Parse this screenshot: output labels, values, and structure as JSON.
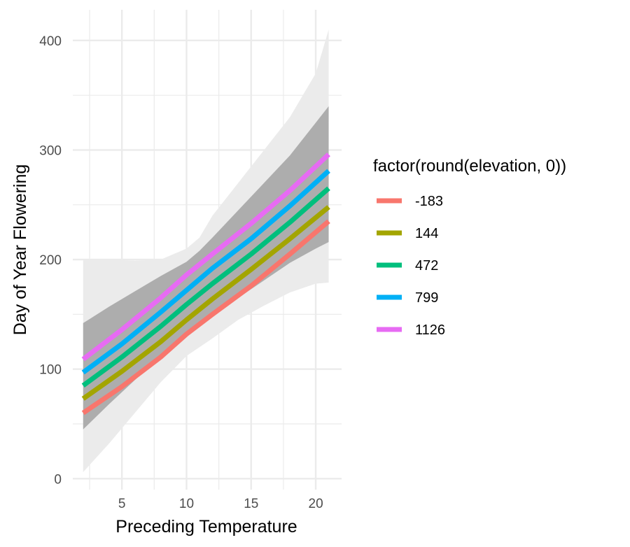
{
  "chart_data": {
    "type": "line",
    "title": "",
    "xlabel": "Preceding Temperature",
    "ylabel": "Day of Year Flowering",
    "xlim": [
      1.2,
      22
    ],
    "ylim": [
      -10,
      428
    ],
    "x_ticks": [
      5,
      10,
      15,
      20
    ],
    "y_ticks": [
      0,
      100,
      200,
      300,
      400
    ],
    "x_tick_labels": [
      "5",
      "10",
      "15",
      "20"
    ],
    "y_tick_labels": [
      "0",
      "100",
      "200",
      "300",
      "400"
    ],
    "grid": true,
    "legend_position": "right",
    "legend_title": "factor(round(elevation, 0))",
    "x": [
      2,
      5,
      8,
      10,
      12,
      15,
      18,
      21
    ],
    "series": [
      {
        "name": "-183",
        "color": "#F8766D",
        "values": [
          60,
          84,
          111,
          132,
          150,
          176,
          205,
          235
        ]
      },
      {
        "name": "144",
        "color": "#A3A500",
        "values": [
          73,
          98,
          125,
          145,
          164,
          191,
          219,
          248
        ]
      },
      {
        "name": "472",
        "color": "#00BF7D",
        "values": [
          85,
          111,
          139,
          159,
          178,
          205,
          234,
          265
        ]
      },
      {
        "name": "799",
        "color": "#00B0F6",
        "values": [
          97,
          123,
          152,
          172,
          192,
          219,
          249,
          281
        ]
      },
      {
        "name": "1126",
        "color": "#E76BF3",
        "values": [
          109,
          136,
          165,
          186,
          205,
          233,
          263,
          296
        ]
      }
    ],
    "bands": [
      {
        "color": "#ebebeb",
        "x": [
          2,
          4,
          6,
          8,
          10,
          11,
          12,
          14,
          16,
          18,
          20,
          21
        ],
        "upper": [
          200,
          200,
          199,
          200,
          210,
          220,
          240,
          270,
          300,
          330,
          370,
          410
        ],
        "lower": [
          6,
          32,
          60,
          88,
          112,
          120,
          128,
          145,
          158,
          170,
          178,
          179
        ]
      },
      {
        "color": "#adadad",
        "x": [
          2,
          4,
          6,
          8,
          10,
          11,
          12,
          14,
          16,
          18,
          20,
          21
        ],
        "upper": [
          142,
          157,
          171,
          185,
          198,
          208,
          220,
          245,
          270,
          295,
          325,
          340
        ],
        "lower": [
          45,
          68,
          90,
          112,
          133,
          140,
          148,
          165,
          181,
          197,
          210,
          216
        ]
      }
    ]
  }
}
